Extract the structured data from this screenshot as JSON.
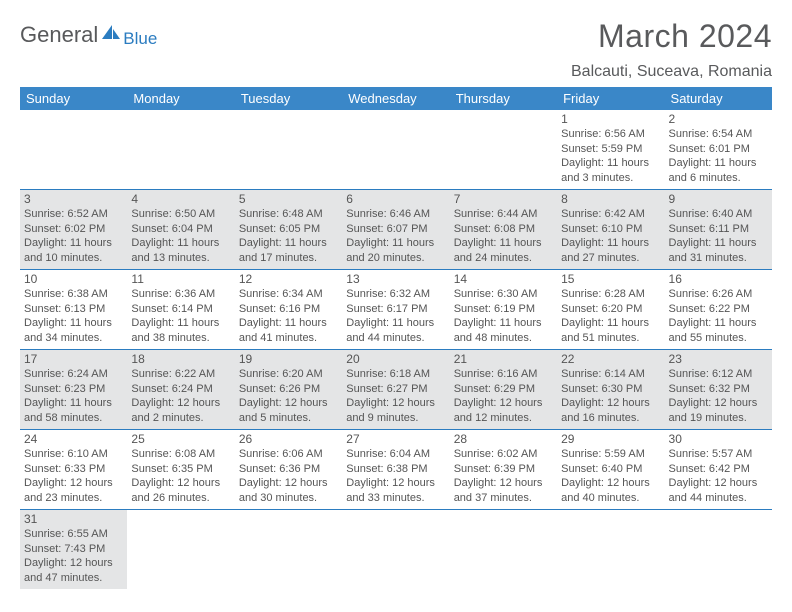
{
  "brand": {
    "part1": "General",
    "part2": "Blue"
  },
  "title": "March 2024",
  "location": "Balcauti, Suceava, Romania",
  "colors": {
    "header_bg": "#3a87c8",
    "header_text": "#ffffff",
    "shade_bg": "#e4e5e6",
    "rule": "#2b7cc0",
    "text": "#555555",
    "title": "#595a5c"
  },
  "weekdays": [
    "Sunday",
    "Monday",
    "Tuesday",
    "Wednesday",
    "Thursday",
    "Friday",
    "Saturday"
  ],
  "weeks": [
    [
      null,
      null,
      null,
      null,
      null,
      {
        "n": "1",
        "sr": "Sunrise: 6:56 AM",
        "ss": "Sunset: 5:59 PM",
        "d1": "Daylight: 11 hours",
        "d2": "and 3 minutes."
      },
      {
        "n": "2",
        "sr": "Sunrise: 6:54 AM",
        "ss": "Sunset: 6:01 PM",
        "d1": "Daylight: 11 hours",
        "d2": "and 6 minutes."
      }
    ],
    [
      {
        "n": "3",
        "sr": "Sunrise: 6:52 AM",
        "ss": "Sunset: 6:02 PM",
        "d1": "Daylight: 11 hours",
        "d2": "and 10 minutes.",
        "shade": true
      },
      {
        "n": "4",
        "sr": "Sunrise: 6:50 AM",
        "ss": "Sunset: 6:04 PM",
        "d1": "Daylight: 11 hours",
        "d2": "and 13 minutes.",
        "shade": true
      },
      {
        "n": "5",
        "sr": "Sunrise: 6:48 AM",
        "ss": "Sunset: 6:05 PM",
        "d1": "Daylight: 11 hours",
        "d2": "and 17 minutes.",
        "shade": true
      },
      {
        "n": "6",
        "sr": "Sunrise: 6:46 AM",
        "ss": "Sunset: 6:07 PM",
        "d1": "Daylight: 11 hours",
        "d2": "and 20 minutes.",
        "shade": true
      },
      {
        "n": "7",
        "sr": "Sunrise: 6:44 AM",
        "ss": "Sunset: 6:08 PM",
        "d1": "Daylight: 11 hours",
        "d2": "and 24 minutes.",
        "shade": true
      },
      {
        "n": "8",
        "sr": "Sunrise: 6:42 AM",
        "ss": "Sunset: 6:10 PM",
        "d1": "Daylight: 11 hours",
        "d2": "and 27 minutes.",
        "shade": true
      },
      {
        "n": "9",
        "sr": "Sunrise: 6:40 AM",
        "ss": "Sunset: 6:11 PM",
        "d1": "Daylight: 11 hours",
        "d2": "and 31 minutes.",
        "shade": true
      }
    ],
    [
      {
        "n": "10",
        "sr": "Sunrise: 6:38 AM",
        "ss": "Sunset: 6:13 PM",
        "d1": "Daylight: 11 hours",
        "d2": "and 34 minutes."
      },
      {
        "n": "11",
        "sr": "Sunrise: 6:36 AM",
        "ss": "Sunset: 6:14 PM",
        "d1": "Daylight: 11 hours",
        "d2": "and 38 minutes."
      },
      {
        "n": "12",
        "sr": "Sunrise: 6:34 AM",
        "ss": "Sunset: 6:16 PM",
        "d1": "Daylight: 11 hours",
        "d2": "and 41 minutes."
      },
      {
        "n": "13",
        "sr": "Sunrise: 6:32 AM",
        "ss": "Sunset: 6:17 PM",
        "d1": "Daylight: 11 hours",
        "d2": "and 44 minutes."
      },
      {
        "n": "14",
        "sr": "Sunrise: 6:30 AM",
        "ss": "Sunset: 6:19 PM",
        "d1": "Daylight: 11 hours",
        "d2": "and 48 minutes."
      },
      {
        "n": "15",
        "sr": "Sunrise: 6:28 AM",
        "ss": "Sunset: 6:20 PM",
        "d1": "Daylight: 11 hours",
        "d2": "and 51 minutes."
      },
      {
        "n": "16",
        "sr": "Sunrise: 6:26 AM",
        "ss": "Sunset: 6:22 PM",
        "d1": "Daylight: 11 hours",
        "d2": "and 55 minutes."
      }
    ],
    [
      {
        "n": "17",
        "sr": "Sunrise: 6:24 AM",
        "ss": "Sunset: 6:23 PM",
        "d1": "Daylight: 11 hours",
        "d2": "and 58 minutes.",
        "shade": true
      },
      {
        "n": "18",
        "sr": "Sunrise: 6:22 AM",
        "ss": "Sunset: 6:24 PM",
        "d1": "Daylight: 12 hours",
        "d2": "and 2 minutes.",
        "shade": true
      },
      {
        "n": "19",
        "sr": "Sunrise: 6:20 AM",
        "ss": "Sunset: 6:26 PM",
        "d1": "Daylight: 12 hours",
        "d2": "and 5 minutes.",
        "shade": true
      },
      {
        "n": "20",
        "sr": "Sunrise: 6:18 AM",
        "ss": "Sunset: 6:27 PM",
        "d1": "Daylight: 12 hours",
        "d2": "and 9 minutes.",
        "shade": true
      },
      {
        "n": "21",
        "sr": "Sunrise: 6:16 AM",
        "ss": "Sunset: 6:29 PM",
        "d1": "Daylight: 12 hours",
        "d2": "and 12 minutes.",
        "shade": true
      },
      {
        "n": "22",
        "sr": "Sunrise: 6:14 AM",
        "ss": "Sunset: 6:30 PM",
        "d1": "Daylight: 12 hours",
        "d2": "and 16 minutes.",
        "shade": true
      },
      {
        "n": "23",
        "sr": "Sunrise: 6:12 AM",
        "ss": "Sunset: 6:32 PM",
        "d1": "Daylight: 12 hours",
        "d2": "and 19 minutes.",
        "shade": true
      }
    ],
    [
      {
        "n": "24",
        "sr": "Sunrise: 6:10 AM",
        "ss": "Sunset: 6:33 PM",
        "d1": "Daylight: 12 hours",
        "d2": "and 23 minutes."
      },
      {
        "n": "25",
        "sr": "Sunrise: 6:08 AM",
        "ss": "Sunset: 6:35 PM",
        "d1": "Daylight: 12 hours",
        "d2": "and 26 minutes."
      },
      {
        "n": "26",
        "sr": "Sunrise: 6:06 AM",
        "ss": "Sunset: 6:36 PM",
        "d1": "Daylight: 12 hours",
        "d2": "and 30 minutes."
      },
      {
        "n": "27",
        "sr": "Sunrise: 6:04 AM",
        "ss": "Sunset: 6:38 PM",
        "d1": "Daylight: 12 hours",
        "d2": "and 33 minutes."
      },
      {
        "n": "28",
        "sr": "Sunrise: 6:02 AM",
        "ss": "Sunset: 6:39 PM",
        "d1": "Daylight: 12 hours",
        "d2": "and 37 minutes."
      },
      {
        "n": "29",
        "sr": "Sunrise: 5:59 AM",
        "ss": "Sunset: 6:40 PM",
        "d1": "Daylight: 12 hours",
        "d2": "and 40 minutes."
      },
      {
        "n": "30",
        "sr": "Sunrise: 5:57 AM",
        "ss": "Sunset: 6:42 PM",
        "d1": "Daylight: 12 hours",
        "d2": "and 44 minutes."
      }
    ],
    [
      {
        "n": "31",
        "sr": "Sunrise: 6:55 AM",
        "ss": "Sunset: 7:43 PM",
        "d1": "Daylight: 12 hours",
        "d2": "and 47 minutes.",
        "shade": true
      },
      null,
      null,
      null,
      null,
      null,
      null
    ]
  ]
}
